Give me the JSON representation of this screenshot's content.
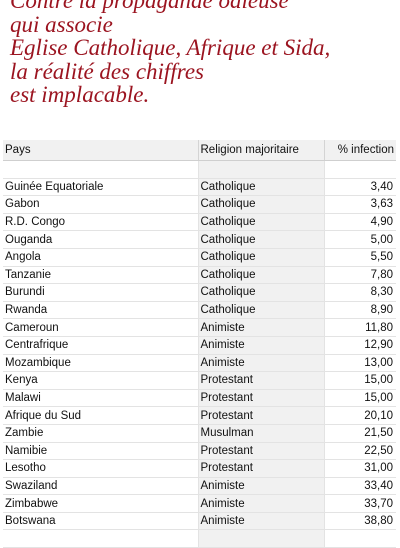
{
  "headline": [
    "Contre la propagande odieuse",
    "qui associe",
    "Eglise Catholique, Afrique et Sida,",
    "la réalité des chiffres",
    "est implacable."
  ],
  "table": {
    "headers": [
      "Pays",
      "Religion majoritaire",
      "% infection"
    ],
    "rows": [
      [
        "",
        "",
        ""
      ],
      [
        "Guinée Equatoriale",
        "Catholique",
        "3,40"
      ],
      [
        "Gabon",
        "Catholique",
        "3,63"
      ],
      [
        "R.D. Congo",
        "Catholique",
        "4,90"
      ],
      [
        "Ouganda",
        "Catholique",
        "5,00"
      ],
      [
        "Angola",
        "Catholique",
        "5,50"
      ],
      [
        "Tanzanie",
        "Catholique",
        "7,80"
      ],
      [
        "Burundi",
        "Catholique",
        "8,30"
      ],
      [
        "Rwanda",
        "Catholique",
        "8,90"
      ],
      [
        "Cameroun",
        "Animiste",
        "11,80"
      ],
      [
        "Centrafrique",
        "Animiste",
        "12,90"
      ],
      [
        "Mozambique",
        "Animiste",
        "13,00"
      ],
      [
        "Kenya",
        "Protestant",
        "15,00"
      ],
      [
        "Malawi",
        "Protestant",
        "15,00"
      ],
      [
        "Afrique du Sud",
        "Protestant",
        "20,10"
      ],
      [
        "Zambie",
        "Musulman",
        "21,50"
      ],
      [
        "Namibie",
        "Protestant",
        "22,50"
      ],
      [
        "Lesotho",
        "Protestant",
        "31,00"
      ],
      [
        "Swaziland",
        "Animiste",
        "33,40"
      ],
      [
        "Zimbabwe",
        "Animiste",
        "33,70"
      ],
      [
        "Botswana",
        "Animiste",
        "38,80"
      ],
      [
        "",
        "",
        ""
      ]
    ]
  },
  "colors": {
    "headline": "#9b1420",
    "header_bg": "#f1f1f1"
  }
}
